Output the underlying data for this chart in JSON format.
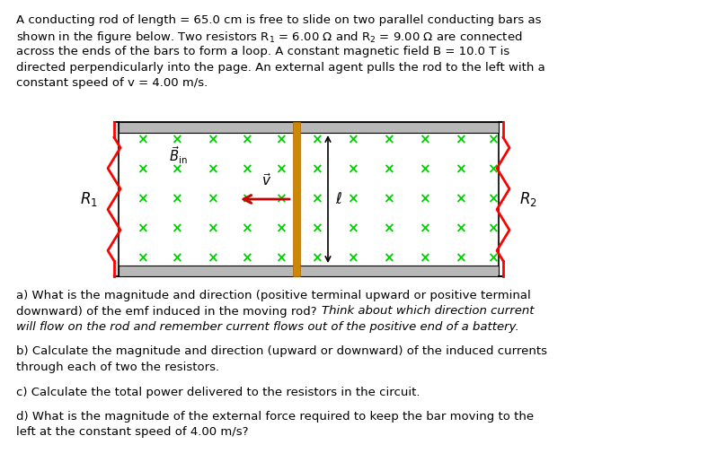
{
  "bg_color": "#ffffff",
  "fig_width": 7.98,
  "fig_height": 5.15,
  "x_color": "#00cc00",
  "rod_color": "#cc8800",
  "rod_color2": "#aa6600",
  "resistor_color": "#ff0000",
  "rail_color": "#b8b8b8",
  "arrow_color": "#cc0000",
  "font_size": 9.5,
  "text_lines": [
    "A conducting rod of length = 65.0 cm is free to slide on two parallel conducting bars as",
    "shown in the figure below. Two resistors R$_1$ = 6.00 $\\Omega$ and R$_2$ = 9.00 $\\Omega$ are connected",
    "across the ends of the bars to form a loop. A constant magnetic field B = 10.0 T is",
    "directed perpendicularly into the page. An external agent pulls the rod to the left with a",
    "constant speed of v = 4.00 m/s."
  ],
  "qa_normal": "a) What is the magnitude and direction (positive terminal upward or positive terminal",
  "qa_normal2": "downward) of the emf induced in the moving rod? ",
  "qa_italic": "Think about which direction current",
  "qa_italic2": "will flow on the rod and remember current flows out of the positive end of a battery.",
  "qb1": "b) Calculate the magnitude and direction (upward or downward) of the induced currents",
  "qb2": "through each of two the resistors.",
  "qc": "c) Calculate the total power delivered to the resistors in the circuit.",
  "qd1": "d) What is the magnitude of the external force required to keep the bar moving to the",
  "qd2": "left at the constant speed of 4.00 m/s?"
}
